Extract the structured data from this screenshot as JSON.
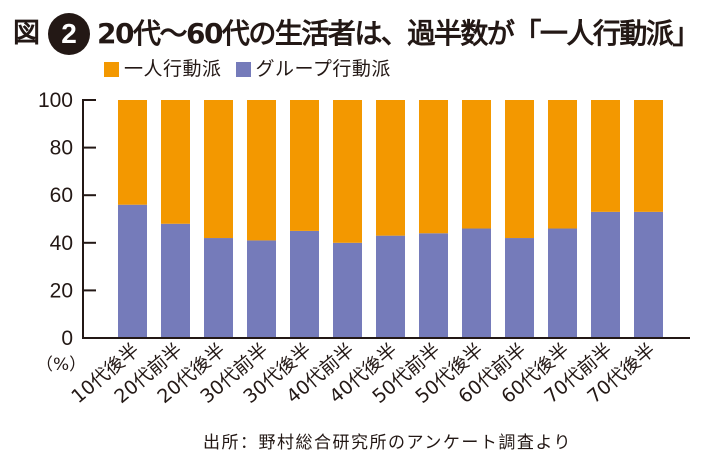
{
  "figure": {
    "label": "図",
    "number": "2",
    "title": "20代～60代の生活者は、過半数が「一人行動派」",
    "unit": "（%）",
    "source": "出所：野村総合研究所のアンケート調査より"
  },
  "colors": {
    "solo": "#F39800",
    "group": "#757BBA",
    "axis": "#231815"
  },
  "chart_data": {
    "type": "bar",
    "stacked": true,
    "title": "20代～60代の生活者は、過半数が「一人行動派」",
    "xlabel": "",
    "ylabel": "（%）",
    "ylim": [
      0,
      100
    ],
    "yticks": [
      0,
      20,
      40,
      60,
      80,
      100
    ],
    "grid": false,
    "legend_position": "top-left",
    "categories": [
      "10代後半",
      "20代前半",
      "20代後半",
      "30代前半",
      "30代後半",
      "40代前半",
      "40代後半",
      "50代前半",
      "50代後半",
      "60代前半",
      "60代後半",
      "70代前半",
      "70代後半"
    ],
    "series": [
      {
        "name": "グループ行動派",
        "color": "#757BBA",
        "values": [
          56,
          48,
          42,
          41,
          45,
          40,
          43,
          44,
          46,
          42,
          46,
          53,
          53
        ]
      },
      {
        "name": "一人行動派",
        "color": "#F39800",
        "values": [
          44,
          52,
          58,
          59,
          55,
          60,
          57,
          56,
          54,
          58,
          54,
          47,
          47
        ]
      }
    ],
    "source": "出所：野村総合研究所のアンケート調査より"
  },
  "legend": [
    {
      "label": "一人行動派",
      "color": "#F39800"
    },
    {
      "label": "グループ行動派",
      "color": "#757BBA"
    }
  ]
}
